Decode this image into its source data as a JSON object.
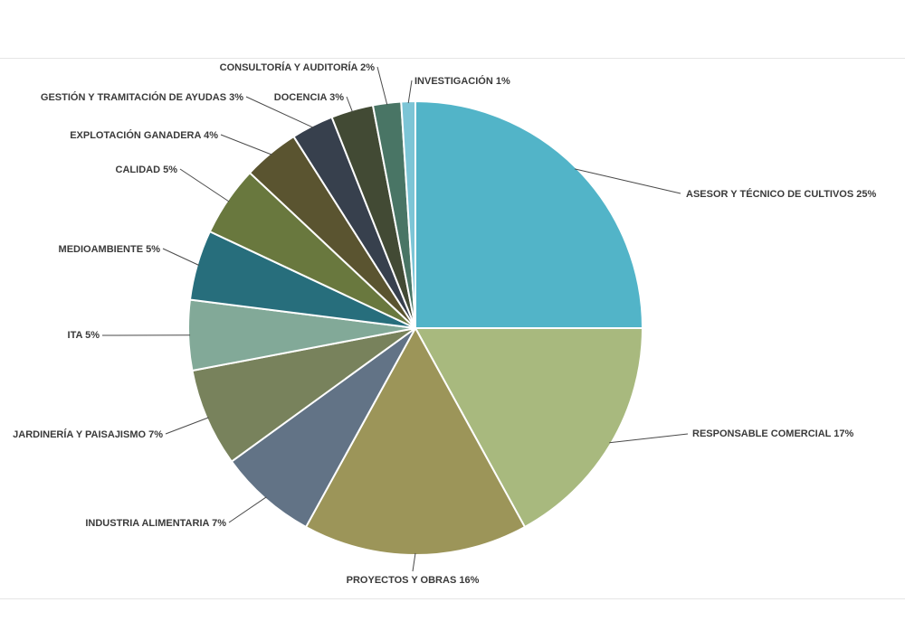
{
  "chart_data": {
    "type": "pie",
    "slices": [
      {
        "label": "ASESOR Y TÉCNICO DE CULTIVOS 25%",
        "value": 25,
        "color": "#52b4c8"
      },
      {
        "label": "RESPONSABLE COMERCIAL 17%",
        "value": 17,
        "color": "#a8b97e"
      },
      {
        "label": "PROYECTOS Y OBRAS 16%",
        "value": 16,
        "color": "#9c9559"
      },
      {
        "label": "INDUSTRIA ALIMENTARIA 7%",
        "value": 7,
        "color": "#627386"
      },
      {
        "label": "JARDINERÍA Y PAISAJISMO 7%",
        "value": 7,
        "color": "#78825c"
      },
      {
        "label": "ITA 5%",
        "value": 5,
        "color": "#82a998"
      },
      {
        "label": "MEDIOAMBIENTE 5%",
        "value": 5,
        "color": "#276e7c"
      },
      {
        "label": "CALIDAD 5%",
        "value": 5,
        "color": "#69783e"
      },
      {
        "label": "EXPLOTACIÓN GANADERA 4%",
        "value": 4,
        "color": "#5a5430"
      },
      {
        "label": "GESTIÓN Y TRAMITACIÓN DE AYUDAS 3%",
        "value": 3,
        "color": "#37404d"
      },
      {
        "label": "DOCENCIA 3%",
        "value": 3,
        "color": "#424a34"
      },
      {
        "label": "CONSULTORÍA Y AUDITORÍA 2%",
        "value": 2,
        "color": "#497565"
      },
      {
        "label": "INVESTIGACIÓN 1%",
        "value": 1,
        "color": "#7cc5d6"
      }
    ]
  }
}
